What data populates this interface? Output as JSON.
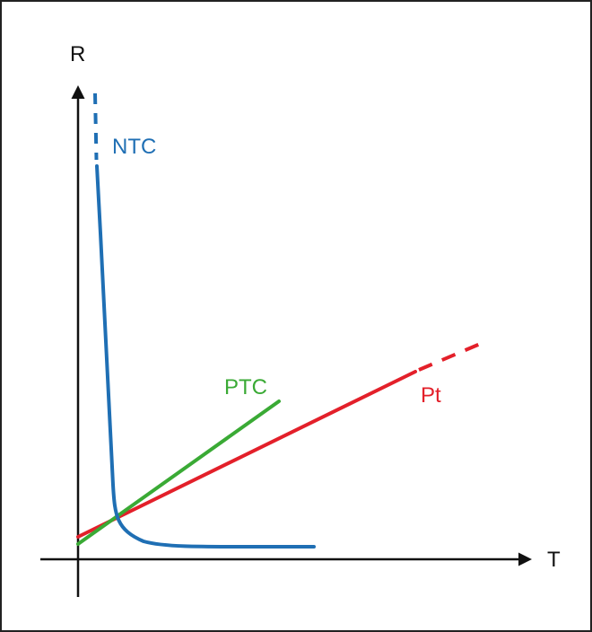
{
  "diagram": {
    "axes": {
      "x_label": "T",
      "y_label": "R"
    },
    "curves": [
      {
        "id": "ntc",
        "label": "NTC",
        "color": "#1f6fb4"
      },
      {
        "id": "ptc",
        "label": "PTC",
        "color": "#3aaa35"
      },
      {
        "id": "pt",
        "label": "Pt",
        "color": "#e3202a"
      }
    ],
    "axis_color": "#111111",
    "frame_color": "#222222"
  }
}
